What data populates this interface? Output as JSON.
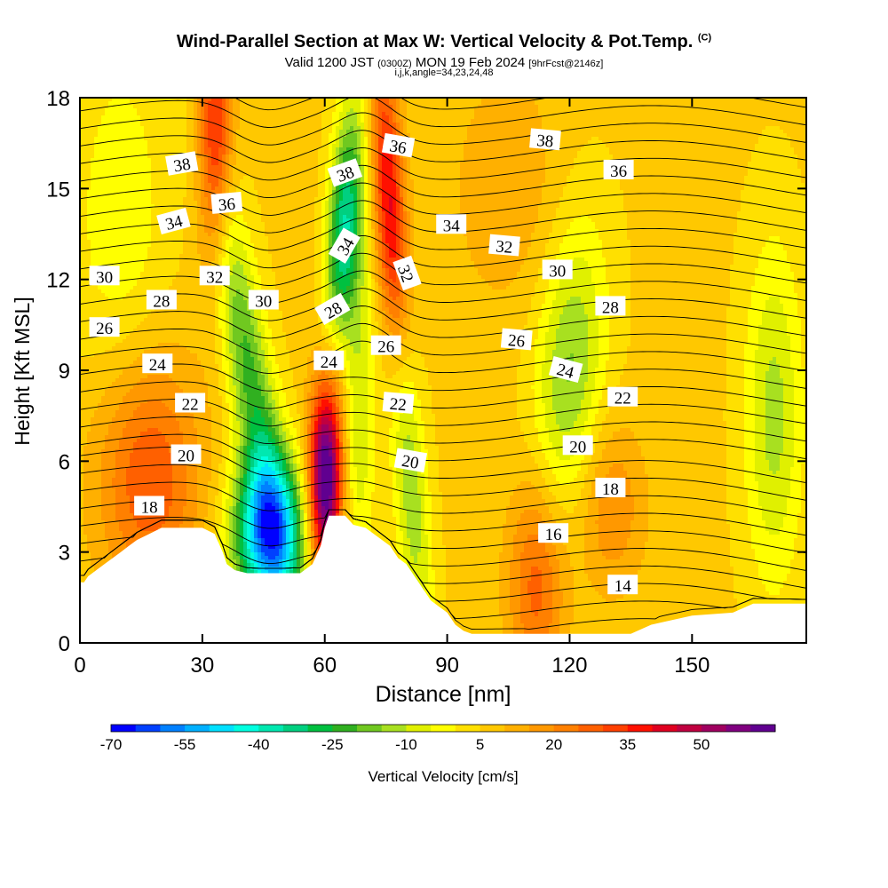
{
  "header": {
    "title": "Wind-Parallel Section at Max W: Vertical Velocity & Pot.Temp.",
    "title_mark": "(C)",
    "subtitle_prefix": "Valid 1200 JST",
    "subtitle_utc": "(0300Z)",
    "subtitle_date": "MON 19 Feb 2024",
    "subtitle_fcst": "[9hrFcst@2146z]",
    "subtitle2": "i,j,k,angle=34,23,24,48"
  },
  "chart_data": {
    "type": "heatmap",
    "xlabel": "Distance [nm]",
    "ylabel": "Height [Kft MSL]",
    "xlim": [
      0,
      178
    ],
    "ylim": [
      0,
      18
    ],
    "x_ticks": [
      0,
      30,
      60,
      90,
      120,
      150
    ],
    "y_ticks": [
      0,
      3,
      6,
      9,
      12,
      15,
      18
    ],
    "colorbar": {
      "label": "Vertical Velocity [cm/s]",
      "tick_labels": [
        -70,
        -55,
        -40,
        -25,
        -10,
        5,
        20,
        35,
        50
      ],
      "min": -70,
      "step": 5,
      "colors": [
        "#0000ff",
        "#0040ff",
        "#0080ff",
        "#00b0ff",
        "#00e0ff",
        "#00ffe0",
        "#00e8b0",
        "#00d080",
        "#00c040",
        "#30b020",
        "#70c820",
        "#a8e020",
        "#e0f000",
        "#ffff00",
        "#ffe000",
        "#ffc800",
        "#ffb000",
        "#ff9800",
        "#ff8000",
        "#ff6000",
        "#ff4000",
        "#ff1000",
        "#e00020",
        "#c00040",
        "#a00060",
        "#800080",
        "#600090"
      ]
    },
    "terrain_kft": [
      [
        0,
        2.0
      ],
      [
        1,
        2.0
      ],
      [
        2,
        2.2
      ],
      [
        4,
        2.4
      ],
      [
        6,
        2.6
      ],
      [
        8,
        2.8
      ],
      [
        10,
        3.0
      ],
      [
        12,
        3.2
      ],
      [
        14,
        3.4
      ],
      [
        17,
        3.6
      ],
      [
        20,
        3.8
      ],
      [
        25,
        3.8
      ],
      [
        30,
        3.8
      ],
      [
        33,
        3.6
      ],
      [
        35,
        3.0
      ],
      [
        36,
        2.6
      ],
      [
        38,
        2.4
      ],
      [
        41,
        2.3
      ],
      [
        45,
        2.3
      ],
      [
        48,
        2.3
      ],
      [
        51,
        2.3
      ],
      [
        54,
        2.3
      ],
      [
        57,
        2.6
      ],
      [
        59,
        3.2
      ],
      [
        60,
        3.8
      ],
      [
        61,
        4.2
      ],
      [
        63,
        4.2
      ],
      [
        65,
        4.2
      ],
      [
        67,
        3.9
      ],
      [
        70,
        3.8
      ],
      [
        72,
        3.6
      ],
      [
        74,
        3.4
      ],
      [
        76,
        3.2
      ],
      [
        78,
        2.8
      ],
      [
        80,
        2.6
      ],
      [
        82,
        2.2
      ],
      [
        84,
        1.8
      ],
      [
        86,
        1.4
      ],
      [
        88,
        1.2
      ],
      [
        90,
        1.0
      ],
      [
        92,
        0.6
      ],
      [
        94,
        0.4
      ],
      [
        96,
        0.3
      ],
      [
        110,
        0.3
      ],
      [
        135,
        0.3
      ],
      [
        140,
        0.6
      ],
      [
        150,
        0.9
      ],
      [
        160,
        1.0
      ],
      [
        165,
        1.3
      ],
      [
        170,
        1.3
      ],
      [
        178,
        1.3
      ]
    ],
    "theta_labels": [
      {
        "text": "38",
        "x": 25,
        "y": 15.8,
        "angle": 10
      },
      {
        "text": "36",
        "x": 36,
        "y": 14.5,
        "angle": 5
      },
      {
        "text": "34",
        "x": 23,
        "y": 13.9,
        "angle": 15
      },
      {
        "text": "32",
        "x": 33,
        "y": 12.1,
        "angle": 0
      },
      {
        "text": "30",
        "x": 6,
        "y": 12.1,
        "angle": 0
      },
      {
        "text": "28",
        "x": 20,
        "y": 11.3,
        "angle": 0
      },
      {
        "text": "30",
        "x": 45,
        "y": 11.3,
        "angle": 0
      },
      {
        "text": "26",
        "x": 6,
        "y": 10.4,
        "angle": 0
      },
      {
        "text": "24",
        "x": 19,
        "y": 9.2,
        "angle": 0
      },
      {
        "text": "22",
        "x": 27,
        "y": 7.9,
        "angle": 0
      },
      {
        "text": "20",
        "x": 26,
        "y": 6.2,
        "angle": 0
      },
      {
        "text": "18",
        "x": 17,
        "y": 4.5,
        "angle": 0
      },
      {
        "text": "38",
        "x": 65,
        "y": 15.5,
        "angle": 20
      },
      {
        "text": "34",
        "x": 65,
        "y": 13.1,
        "angle": 60
      },
      {
        "text": "28",
        "x": 62,
        "y": 11.0,
        "angle": 30
      },
      {
        "text": "24",
        "x": 61,
        "y": 9.3,
        "angle": 0
      },
      {
        "text": "36",
        "x": 78,
        "y": 16.4,
        "angle": -10
      },
      {
        "text": "32",
        "x": 80,
        "y": 12.2,
        "angle": -70
      },
      {
        "text": "34",
        "x": 91,
        "y": 13.8,
        "angle": 0
      },
      {
        "text": "26",
        "x": 75,
        "y": 9.8,
        "angle": 0
      },
      {
        "text": "22",
        "x": 78,
        "y": 7.9,
        "angle": -5
      },
      {
        "text": "20",
        "x": 81,
        "y": 6.0,
        "angle": -10
      },
      {
        "text": "38",
        "x": 114,
        "y": 16.6,
        "angle": -5
      },
      {
        "text": "36",
        "x": 132,
        "y": 15.6,
        "angle": 0
      },
      {
        "text": "32",
        "x": 104,
        "y": 13.1,
        "angle": -5
      },
      {
        "text": "30",
        "x": 117,
        "y": 12.3,
        "angle": 0
      },
      {
        "text": "28",
        "x": 130,
        "y": 11.1,
        "angle": 0
      },
      {
        "text": "26",
        "x": 107,
        "y": 10.0,
        "angle": -5
      },
      {
        "text": "24",
        "x": 119,
        "y": 9.0,
        "angle": -15
      },
      {
        "text": "22",
        "x": 133,
        "y": 8.1,
        "angle": 0
      },
      {
        "text": "20",
        "x": 122,
        "y": 6.5,
        "angle": 0
      },
      {
        "text": "18",
        "x": 130,
        "y": 5.1,
        "angle": 0
      },
      {
        "text": "16",
        "x": 116,
        "y": 3.6,
        "angle": 0
      },
      {
        "text": "14",
        "x": 133,
        "y": 1.9,
        "angle": 0
      }
    ]
  }
}
